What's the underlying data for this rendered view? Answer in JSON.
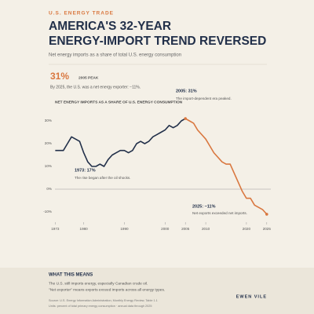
{
  "header": {
    "kicker": "U.S. ENERGY TRADE",
    "title_lines": [
      "AMERICA'S 32-YEAR",
      "ENERGY-IMPORT TREND REVERSED"
    ],
    "subtitle": "Net energy imports as a share of total U.S. energy consumption"
  },
  "highlight": {
    "value": "31%",
    "label": "2005 PEAK",
    "note": "By 2025, the U.S. was a net energy exporter: −11%."
  },
  "chart_data": {
    "type": "line",
    "title": "NET ENERGY IMPORTS AS A SHARE OF U.S. ENERGY CONSUMPTION",
    "x": [
      1973,
      1974,
      1975,
      1976,
      1977,
      1978,
      1979,
      1980,
      1981,
      1982,
      1983,
      1984,
      1985,
      1986,
      1987,
      1988,
      1989,
      1990,
      1991,
      1992,
      1993,
      1994,
      1995,
      1996,
      1997,
      1998,
      1999,
      2000,
      2001,
      2002,
      2003,
      2004,
      2005,
      2006,
      2007,
      2008,
      2009,
      2010,
      2011,
      2012,
      2013,
      2014,
      2015,
      2016,
      2017,
      2018,
      2019,
      2020,
      2021,
      2022,
      2023,
      2024,
      2025
    ],
    "series": [
      {
        "color": "#22304a",
        "values": [
          17,
          17,
          17,
          20,
          23,
          22,
          21,
          16,
          12,
          10,
          10,
          11,
          10,
          13,
          15,
          16,
          17,
          17,
          16,
          17,
          20,
          21,
          20,
          21,
          23,
          24,
          25,
          26,
          28,
          27,
          28,
          30,
          31,
          null,
          null,
          null,
          null,
          null,
          null,
          null,
          null,
          null,
          null,
          null,
          null,
          null,
          null,
          null,
          null,
          null,
          null,
          null,
          null
        ]
      },
      {
        "color": "#d9773f",
        "values": [
          null,
          null,
          null,
          null,
          null,
          null,
          null,
          null,
          null,
          null,
          null,
          null,
          null,
          null,
          null,
          null,
          null,
          null,
          null,
          null,
          null,
          null,
          null,
          null,
          null,
          null,
          null,
          null,
          null,
          null,
          null,
          null,
          31,
          30,
          29,
          26,
          24,
          22,
          19,
          16,
          14,
          12,
          11,
          11,
          7,
          3,
          -1,
          -4,
          -4,
          -7,
          -8,
          -9,
          -11
        ]
      }
    ],
    "xlim": [
      1971,
      2026
    ],
    "xticks": [
      1973,
      1980,
      1990,
      2000,
      2005,
      2010,
      2020,
      2025
    ],
    "ylim": [
      -13,
      33
    ],
    "yticks": [
      {
        "value": 30,
        "label": "30%"
      },
      {
        "value": 20,
        "label": "20%"
      },
      {
        "value": 10,
        "label": "10%"
      },
      {
        "value": 0,
        "label": "0%"
      },
      {
        "value": -10,
        "label": "-10%"
      }
    ],
    "annotations": [
      {
        "title": "2005: 31%",
        "text": "The import-dependent era peaked."
      },
      {
        "title": "1973: 17%",
        "text": "The rise began after the oil shocks."
      },
      {
        "title": "2025: −11%",
        "text": "Net exports exceeded net imports."
      }
    ]
  },
  "footer": {
    "heading": "WHAT THIS MEANS",
    "lines": [
      "The U.S. still imports energy, especially Canadian crude oil.",
      "\"Net exporter\" means exports exceed imports across all energy types."
    ],
    "sources": [
      "Source: U.S. Energy Information Administration, Monthly Energy Review, Table 1.1",
      "Units: percent of total primary energy consumption · annual data through 2025"
    ],
    "brand": "EWEN VILE"
  }
}
